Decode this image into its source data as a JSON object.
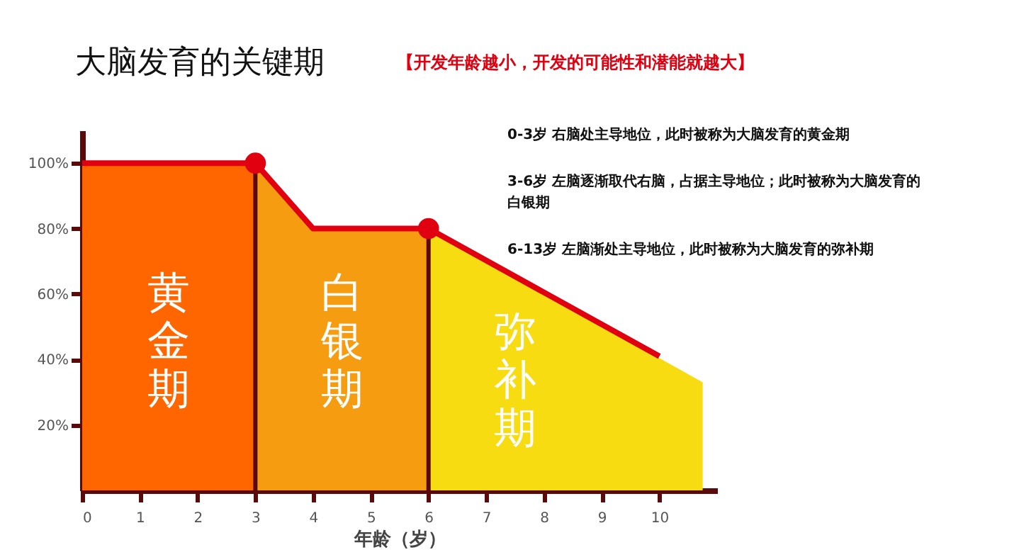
{
  "chart_data": {
    "type": "area",
    "title": "大脑发育的关键期",
    "subtitle": "【开发年龄越小，开发的可能性和潜能就越大】",
    "xlabel": "年龄（岁）",
    "xlim": [
      0,
      11
    ],
    "ylim": [
      0,
      110
    ],
    "xticks": [
      0,
      1,
      2,
      3,
      4,
      5,
      6,
      7,
      8,
      9,
      10
    ],
    "yticks": [
      {
        "value": 20,
        "label": "20%"
      },
      {
        "value": 40,
        "label": "40%"
      },
      {
        "value": 60,
        "label": "60%"
      },
      {
        "value": 80,
        "label": "80%"
      },
      {
        "value": 100,
        "label": "100%"
      }
    ],
    "series": [
      {
        "name": "黄金期",
        "color": "#ff6600",
        "x": [
          0,
          3
        ],
        "values": [
          100,
          100
        ]
      },
      {
        "name": "白银期",
        "color": "#f59c10",
        "x": [
          3,
          4,
          6
        ],
        "values": [
          100,
          80,
          80
        ]
      },
      {
        "name": "弥补期",
        "color": "#f7dc12",
        "x": [
          6,
          10.75
        ],
        "values": [
          80,
          33
        ]
      },
      {
        "type": "line",
        "color": "#e00010",
        "x": [
          0,
          3,
          4,
          6,
          10
        ],
        "values": [
          100,
          100,
          80,
          80,
          41
        ]
      },
      {
        "type": "scatter",
        "color": "#e00010",
        "x": [
          3,
          6
        ],
        "values": [
          100,
          80
        ]
      }
    ],
    "annotations": [
      "0-3岁  右脑处主导地位，此时被称为大脑发育的黄金期",
      "3-6岁  左脑逐渐取代右脑，占据主导地位；此时被称为大脑发育的白银期",
      "6-13岁 左脑渐处主导地位，此时被称为大脑发育的弥补期"
    ],
    "ref_lines": [
      {
        "axis": "x",
        "value": 3,
        "color": "#5a0a0a"
      },
      {
        "axis": "x",
        "value": 6,
        "color": "#5a0a0a"
      }
    ],
    "grid": false
  }
}
